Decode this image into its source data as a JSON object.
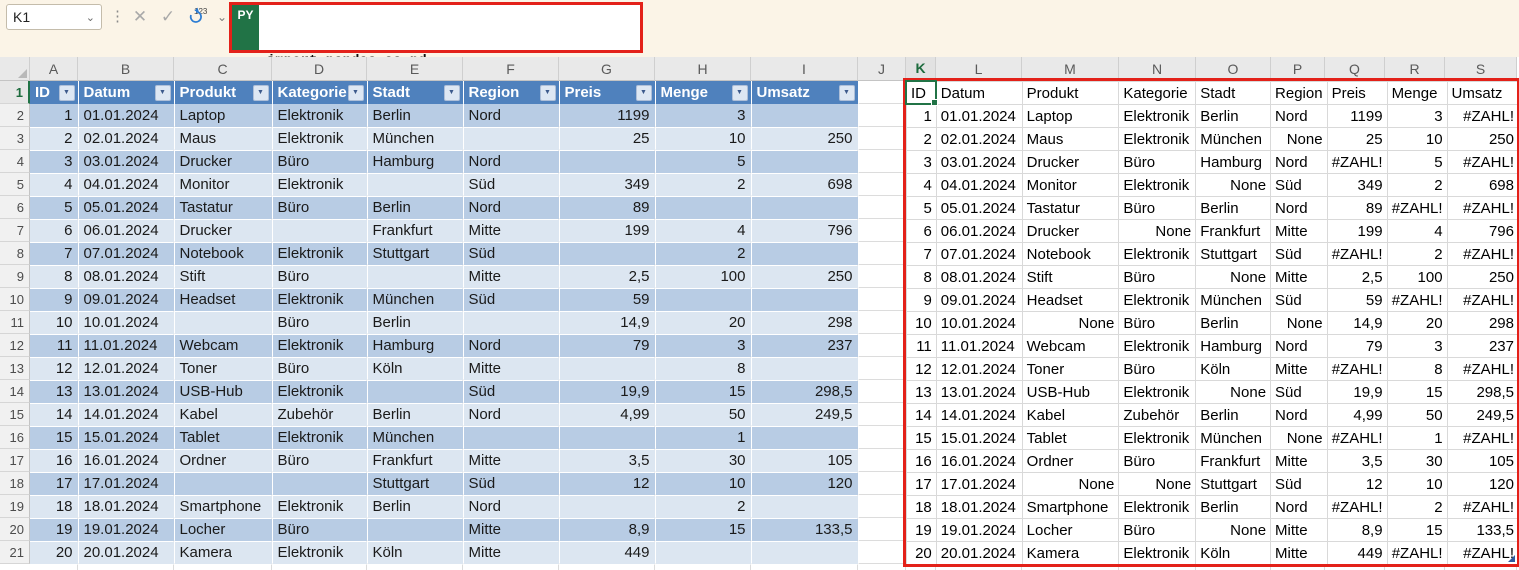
{
  "formula_bar": {
    "name_box_value": "K1",
    "icons": {
      "name_box_chevron": "⌄",
      "kebab": "⋮",
      "cancel": "✕",
      "confirm": "✓",
      "python_refresh_badge": "123",
      "dropdown_chevron": "⌄"
    },
    "language_badge": "PY",
    "code_lines": [
      "import pandas as pd",
      "umsatz = xl(\"tab_Umsatz[#Alle]\",headers=True)"
    ]
  },
  "grid": {
    "column_letters": [
      "A",
      "B",
      "C",
      "D",
      "E",
      "F",
      "G",
      "H",
      "I",
      "J",
      "K",
      "L",
      "M",
      "N",
      "O",
      "P",
      "Q",
      "R",
      "S"
    ],
    "row_numbers": [
      1,
      2,
      3,
      4,
      5,
      6,
      7,
      8,
      9,
      10,
      11,
      12,
      13,
      14,
      15,
      16,
      17,
      18,
      19,
      20,
      21
    ],
    "active_cell": "K1",
    "active_column": "K",
    "active_row": 1
  },
  "left_table": {
    "headers": [
      "ID",
      "Datum",
      "Produkt",
      "Kategorie",
      "Stadt",
      "Region",
      "Preis",
      "Menge",
      "Umsatz"
    ],
    "filter_glyph": "▼",
    "rows": [
      [
        1,
        "01.01.2024",
        "Laptop",
        "Elektronik",
        "Berlin",
        "Nord",
        "1199",
        "3",
        null
      ],
      [
        2,
        "02.01.2024",
        "Maus",
        "Elektronik",
        "München",
        null,
        "25",
        "10",
        "250"
      ],
      [
        3,
        "03.01.2024",
        "Drucker",
        "Büro",
        "Hamburg",
        "Nord",
        null,
        "5",
        null
      ],
      [
        4,
        "04.01.2024",
        "Monitor",
        "Elektronik",
        null,
        "Süd",
        "349",
        "2",
        "698"
      ],
      [
        5,
        "05.01.2024",
        "Tastatur",
        "Büro",
        "Berlin",
        "Nord",
        "89",
        null,
        null
      ],
      [
        6,
        "06.01.2024",
        "Drucker",
        null,
        "Frankfurt",
        "Mitte",
        "199",
        "4",
        "796"
      ],
      [
        7,
        "07.01.2024",
        "Notebook",
        "Elektronik",
        "Stuttgart",
        "Süd",
        null,
        "2",
        null
      ],
      [
        8,
        "08.01.2024",
        "Stift",
        "Büro",
        null,
        "Mitte",
        "2,5",
        "100",
        "250"
      ],
      [
        9,
        "09.01.2024",
        "Headset",
        "Elektronik",
        "München",
        "Süd",
        "59",
        null,
        null
      ],
      [
        10,
        "10.01.2024",
        null,
        "Büro",
        "Berlin",
        null,
        "14,9",
        "20",
        "298"
      ],
      [
        11,
        "11.01.2024",
        "Webcam",
        "Elektronik",
        "Hamburg",
        "Nord",
        "79",
        "3",
        "237"
      ],
      [
        12,
        "12.01.2024",
        "Toner",
        "Büro",
        "Köln",
        "Mitte",
        null,
        "8",
        null
      ],
      [
        13,
        "13.01.2024",
        "USB-Hub",
        "Elektronik",
        null,
        "Süd",
        "19,9",
        "15",
        "298,5"
      ],
      [
        14,
        "14.01.2024",
        "Kabel",
        "Zubehör",
        "Berlin",
        "Nord",
        "4,99",
        "50",
        "249,5"
      ],
      [
        15,
        "15.01.2024",
        "Tablet",
        "Elektronik",
        "München",
        null,
        null,
        "1",
        null
      ],
      [
        16,
        "16.01.2024",
        "Ordner",
        "Büro",
        "Frankfurt",
        "Mitte",
        "3,5",
        "30",
        "105"
      ],
      [
        17,
        "17.01.2024",
        null,
        null,
        "Stuttgart",
        "Süd",
        "12",
        "10",
        "120"
      ],
      [
        18,
        "18.01.2024",
        "Smartphone",
        "Elektronik",
        "Berlin",
        "Nord",
        null,
        "2",
        null
      ],
      [
        19,
        "19.01.2024",
        "Locher",
        "Büro",
        null,
        "Mitte",
        "8,9",
        "15",
        "133,5"
      ],
      [
        20,
        "20.01.2024",
        "Kamera",
        "Elektronik",
        "Köln",
        "Mitte",
        "449",
        null,
        null
      ]
    ]
  },
  "right_table": {
    "headers": [
      "ID",
      "Datum",
      "Produkt",
      "Kategorie",
      "Stadt",
      "Region",
      "Preis",
      "Menge",
      "Umsatz"
    ],
    "none_text": "None",
    "error_text": "#ZAHL!",
    "rows": [
      [
        1,
        "01.01.2024",
        "Laptop",
        "Elektronik",
        "Berlin",
        "Nord",
        "1199",
        "3",
        "#ZAHL!"
      ],
      [
        2,
        "02.01.2024",
        "Maus",
        "Elektronik",
        "München",
        "None",
        "25",
        "10",
        "250"
      ],
      [
        3,
        "03.01.2024",
        "Drucker",
        "Büro",
        "Hamburg",
        "Nord",
        "#ZAHL!",
        "5",
        "#ZAHL!"
      ],
      [
        4,
        "04.01.2024",
        "Monitor",
        "Elektronik",
        "None",
        "Süd",
        "349",
        "2",
        "698"
      ],
      [
        5,
        "05.01.2024",
        "Tastatur",
        "Büro",
        "Berlin",
        "Nord",
        "89",
        "#ZAHL!",
        "#ZAHL!"
      ],
      [
        6,
        "06.01.2024",
        "Drucker",
        "None",
        "Frankfurt",
        "Mitte",
        "199",
        "4",
        "796"
      ],
      [
        7,
        "07.01.2024",
        "Notebook",
        "Elektronik",
        "Stuttgart",
        "Süd",
        "#ZAHL!",
        "2",
        "#ZAHL!"
      ],
      [
        8,
        "08.01.2024",
        "Stift",
        "Büro",
        "None",
        "Mitte",
        "2,5",
        "100",
        "250"
      ],
      [
        9,
        "09.01.2024",
        "Headset",
        "Elektronik",
        "München",
        "Süd",
        "59",
        "#ZAHL!",
        "#ZAHL!"
      ],
      [
        10,
        "10.01.2024",
        "None",
        "Büro",
        "Berlin",
        "None",
        "14,9",
        "20",
        "298"
      ],
      [
        11,
        "11.01.2024",
        "Webcam",
        "Elektronik",
        "Hamburg",
        "Nord",
        "79",
        "3",
        "237"
      ],
      [
        12,
        "12.01.2024",
        "Toner",
        "Büro",
        "Köln",
        "Mitte",
        "#ZAHL!",
        "8",
        "#ZAHL!"
      ],
      [
        13,
        "13.01.2024",
        "USB-Hub",
        "Elektronik",
        "None",
        "Süd",
        "19,9",
        "15",
        "298,5"
      ],
      [
        14,
        "14.01.2024",
        "Kabel",
        "Zubehör",
        "Berlin",
        "Nord",
        "4,99",
        "50",
        "249,5"
      ],
      [
        15,
        "15.01.2024",
        "Tablet",
        "Elektronik",
        "München",
        "None",
        "#ZAHL!",
        "1",
        "#ZAHL!"
      ],
      [
        16,
        "16.01.2024",
        "Ordner",
        "Büro",
        "Frankfurt",
        "Mitte",
        "3,5",
        "30",
        "105"
      ],
      [
        17,
        "17.01.2024",
        "None",
        "None",
        "Stuttgart",
        "Süd",
        "12",
        "10",
        "120"
      ],
      [
        18,
        "18.01.2024",
        "Smartphone",
        "Elektronik",
        "Berlin",
        "Nord",
        "#ZAHL!",
        "2",
        "#ZAHL!"
      ],
      [
        19,
        "19.01.2024",
        "Locher",
        "Büro",
        "None",
        "Mitte",
        "8,9",
        "15",
        "133,5"
      ],
      [
        20,
        "20.01.2024",
        "Kamera",
        "Elektronik",
        "Köln",
        "Mitte",
        "449",
        "#ZAHL!",
        "#ZAHL!"
      ]
    ]
  },
  "colors": {
    "table_header_blue": "#4F81BD",
    "band_dark": "#B8CCE4",
    "band_light": "#DCE6F1",
    "missing_highlight": "#FFFF00",
    "annotation_red": "#E32119",
    "python_green": "#217346",
    "topbar_cream": "#FBF4E7"
  }
}
